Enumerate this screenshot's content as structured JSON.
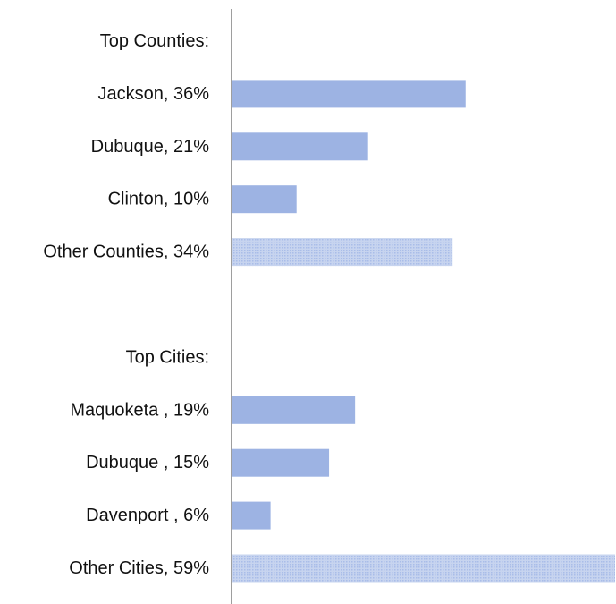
{
  "chart_data": {
    "type": "bar",
    "orientation": "horizontal",
    "title": "",
    "xlabel": "",
    "ylabel": "",
    "grid": false,
    "legend": "none",
    "xlim": [
      0,
      59
    ],
    "colors": {
      "bar": "#9db3e3",
      "other_bar": "#c7d4ef",
      "other_pattern_dot": "#a9bde8",
      "axis": "#7f7f7f",
      "text": "#111111"
    },
    "categories": [
      "Top Counties:",
      "Jackson, 36%",
      "Dubuque, 21%",
      "Clinton, 10%",
      "Other Counties, 34%",
      "",
      "Top Cities:",
      "Maquoketa , 19%",
      "Dubuque , 15%",
      "Davenport , 6%",
      "Other Cities, 59%"
    ],
    "values": [
      null,
      36,
      21,
      10,
      34,
      null,
      null,
      19,
      15,
      6,
      59
    ],
    "styles": [
      "none",
      "solid",
      "solid",
      "solid",
      "pattern",
      "none",
      "none",
      "solid",
      "solid",
      "solid",
      "pattern"
    ]
  }
}
